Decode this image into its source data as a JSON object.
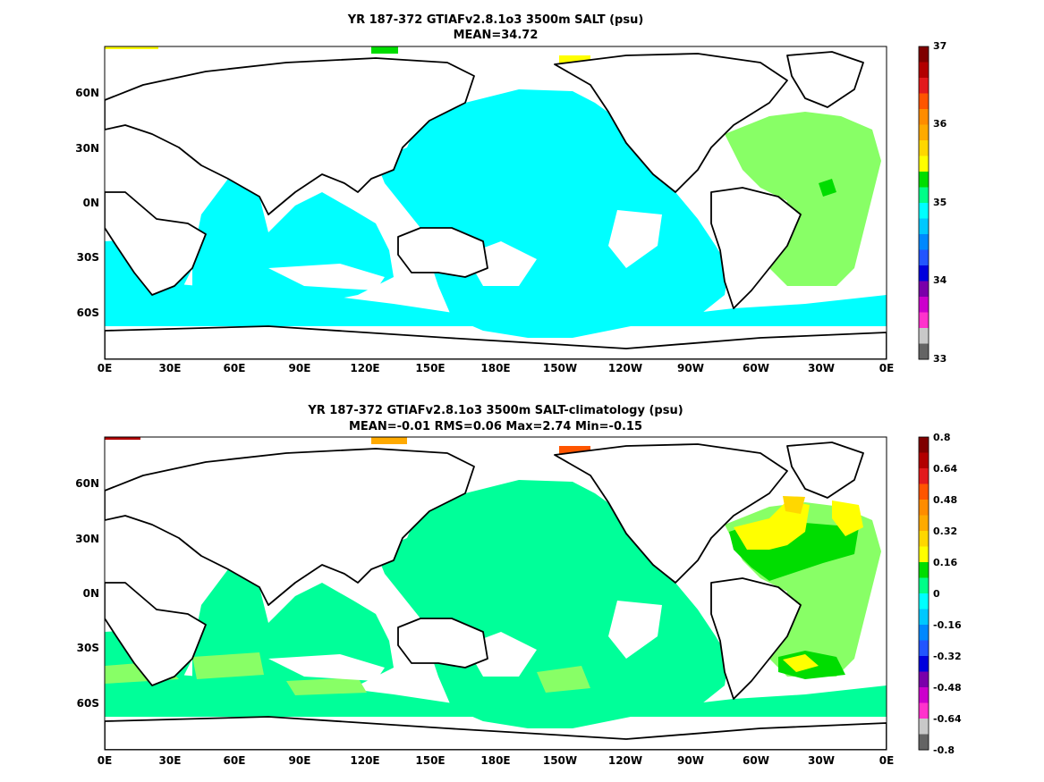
{
  "panels": [
    {
      "title": "YR 187-372 GTIAFv2.8.1o3 3500m SALT (psu)",
      "subtitle": "MEAN=34.72",
      "colorbar": {
        "ticks": [
          "37",
          "36",
          "35",
          "34",
          "33"
        ],
        "colors": [
          "#7f0000",
          "#b20000",
          "#e31a1c",
          "#ff5500",
          "#ff8c00",
          "#ffaa00",
          "#ffd700",
          "#ffff00",
          "#00dd00",
          "#00ff88",
          "#00ffff",
          "#00c8ff",
          "#0088ff",
          "#2255ff",
          "#0000dd",
          "#7a00aa",
          "#cc00cc",
          "#ff33cc",
          "#c8c8c8",
          "#646464"
        ]
      }
    },
    {
      "title": "YR 187-372 GTIAFv2.8.1o3 3500m SALT-climatology (psu)",
      "subtitle": "MEAN=-0.01   RMS=0.06   Max=2.74   Min=-0.15",
      "colorbar": {
        "ticks": [
          "0.8",
          "0.64",
          "0.48",
          "0.32",
          "0.16",
          "0",
          "-0.16",
          "-0.32",
          "-0.48",
          "-0.64",
          "-0.8"
        ],
        "colors": [
          "#7f0000",
          "#b20000",
          "#e31a1c",
          "#ff5500",
          "#ff8c00",
          "#ffaa00",
          "#ffd700",
          "#ffff00",
          "#00dd00",
          "#00ff88",
          "#00ffff",
          "#00c8ff",
          "#0088ff",
          "#2255ff",
          "#0000dd",
          "#7a00aa",
          "#cc00cc",
          "#ff33cc",
          "#c8c8c8",
          "#646464"
        ]
      }
    }
  ],
  "axes": {
    "x_ticks": [
      "0E",
      "30E",
      "60E",
      "90E",
      "120E",
      "150E",
      "180E",
      "150W",
      "120W",
      "90W",
      "60W",
      "30W",
      "0E"
    ],
    "y_ticks": [
      "60N",
      "30N",
      "0N",
      "30S",
      "60S"
    ]
  },
  "palette": {
    "land": "#ffffff",
    "coast": "#000000",
    "top_field": "#00ffff",
    "top_atlantic": "#88ff66",
    "top_atlantic_dark": "#00dd00",
    "bottom_field": "#00ff99",
    "bottom_light": "#88ff66",
    "bottom_green": "#00dd00",
    "bottom_yellow": "#ffff00",
    "bottom_orange": "#ff5500"
  }
}
